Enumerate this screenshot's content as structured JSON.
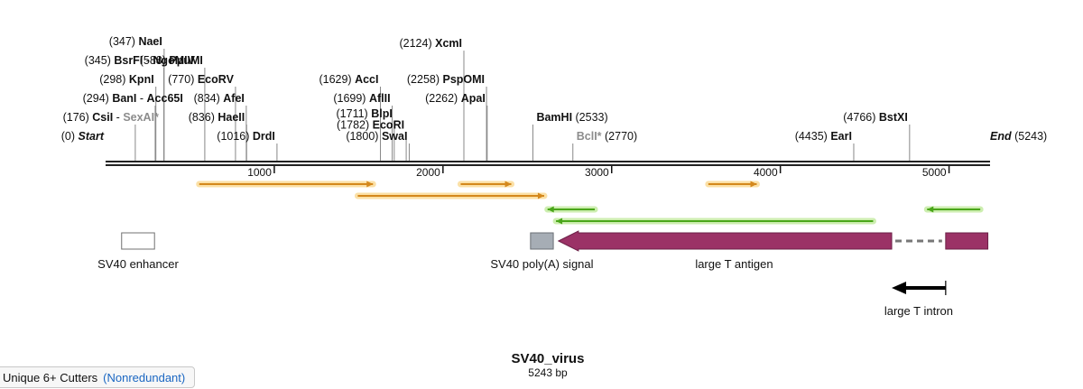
{
  "map": {
    "name": "SV40_virus",
    "length_label": "5243 bp",
    "total_bp": 5243,
    "start_label": "Start",
    "end_label": "End"
  },
  "sites": [
    {
      "name": "Start",
      "pos": 0,
      "pos_label": "(0)",
      "row": 0,
      "italic": true
    },
    {
      "name": "CsiI",
      "pos": 176,
      "pos_label": "(176)",
      "row": 1,
      "partner": "SexAI*",
      "partner_pos": 176
    },
    {
      "name": "BanI",
      "pos": 294,
      "pos_label": "(294)",
      "row": 2,
      "partner": "Acc65I",
      "partner_pos": 294
    },
    {
      "name": "KpnI",
      "pos": 298,
      "pos_label": "(298)",
      "row": 3
    },
    {
      "name": "BsrFI",
      "pos": 345,
      "pos_label": "(345)",
      "row": 4,
      "partner": "NgoMIV",
      "partner_pos": 345
    },
    {
      "name": "NaeI",
      "pos": 347,
      "pos_label": "(347)",
      "row": 5
    },
    {
      "name": "PpuMI",
      "pos": 588,
      "pos_label": "(588)",
      "row": 4
    },
    {
      "name": "EcoRV",
      "pos": 770,
      "pos_label": "(770)",
      "row": 3
    },
    {
      "name": "AfeI",
      "pos": 834,
      "pos_label": "(834)",
      "row": 2
    },
    {
      "name": "HaeII",
      "pos": 836,
      "pos_label": "(836)",
      "row": 1
    },
    {
      "name": "DrdI",
      "pos": 1016,
      "pos_label": "(1016)",
      "row": 0
    },
    {
      "name": "AccI",
      "pos": 1629,
      "pos_label": "(1629)",
      "row": 3
    },
    {
      "name": "AflII",
      "pos": 1699,
      "pos_label": "(1699)",
      "row": 2
    },
    {
      "name": "BlpI",
      "pos": 1711,
      "pos_label": "(1711)",
      "row": 1.2
    },
    {
      "name": "EcoRI",
      "pos": 1782,
      "pos_label": "(1782)",
      "row": 0.6
    },
    {
      "name": "SwaI",
      "pos": 1800,
      "pos_label": "(1800)",
      "row": 0
    },
    {
      "name": "XcmI",
      "pos": 2124,
      "pos_label": "(2124)",
      "row": 4.9
    },
    {
      "name": "PspOMI",
      "pos": 2258,
      "pos_label": "(2258)",
      "row": 3
    },
    {
      "name": "ApaI",
      "pos": 2262,
      "pos_label": "(2262)",
      "row": 2
    },
    {
      "name": "BamHI",
      "pos": 2533,
      "pos_label": "(2533)",
      "row": 1,
      "label_after": true
    },
    {
      "name": "BclI*",
      "pos": 2770,
      "pos_label": "(2770)",
      "row": 0,
      "gray": true,
      "label_after": true
    },
    {
      "name": "EarI",
      "pos": 4435,
      "pos_label": "(4435)",
      "row": 0
    },
    {
      "name": "BstXI",
      "pos": 4766,
      "pos_label": "(4766)",
      "row": 1
    },
    {
      "name": "End",
      "pos": 5243,
      "pos_label": "(5243)",
      "row": 0,
      "italic": true,
      "label_after": true
    }
  ],
  "ticks": [
    {
      "pos": 1000,
      "label": "1000"
    },
    {
      "pos": 2000,
      "label": "2000"
    },
    {
      "pos": 3000,
      "label": "3000"
    },
    {
      "pos": 4000,
      "label": "4000"
    },
    {
      "pos": 5000,
      "label": "5000"
    }
  ],
  "orfs": [
    {
      "start": 555,
      "end": 1585,
      "strand": "+",
      "lane": 0,
      "color": "#d4881c",
      "glow": "#fbe0a6"
    },
    {
      "start": 1495,
      "end": 2600,
      "strand": "+",
      "lane": 1,
      "color": "#d4881c",
      "glow": "#fbe0a6"
    },
    {
      "start": 2105,
      "end": 2405,
      "strand": "+",
      "lane": 0,
      "color": "#d4881c",
      "glow": "#fbe0a6"
    },
    {
      "start": 3573,
      "end": 3860,
      "strand": "+",
      "lane": 0,
      "color": "#d4881c",
      "glow": "#fbe0a6"
    },
    {
      "start": 2620,
      "end": 2900,
      "strand": "-",
      "lane": 2,
      "color": "#4aa61a",
      "glow": "#cdeeb0"
    },
    {
      "start": 2670,
      "end": 4550,
      "strand": "-",
      "lane": 3,
      "color": "#4aa61a",
      "glow": "#cdeeb0"
    },
    {
      "start": 4870,
      "end": 5185,
      "strand": "-",
      "lane": 2,
      "color": "#4aa61a",
      "glow": "#cdeeb0"
    }
  ],
  "features": [
    {
      "label": "SV40 enhancer",
      "start": 95,
      "end": 290,
      "shape": "box",
      "fill": "#ffffff",
      "stroke": "#707070"
    },
    {
      "label": "SV40 poly(A) signal",
      "start": 2519,
      "end": 2654,
      "shape": "box",
      "fill": "#a6adb5",
      "stroke": "#6a6f75"
    },
    {
      "label": "large T antigen",
      "start": 2685,
      "end": 4660,
      "shape": "arrow-left",
      "fill": "#9b3266",
      "stroke": "#6b1f46",
      "intron_start": 4660,
      "intron_end": 4980,
      "exon2_start": 4980,
      "exon2_end": 5230
    }
  ],
  "intron": {
    "label": "large T intron",
    "start": 4660,
    "end": 4980,
    "color": "#000000"
  },
  "bottom_bar": {
    "text": "Unique 6+ Cutters",
    "mode": "(Nonredundant)"
  }
}
